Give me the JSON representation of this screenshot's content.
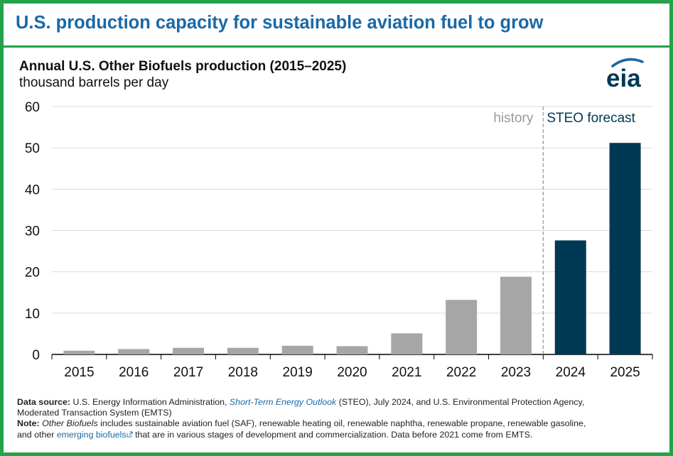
{
  "header": {
    "headline": "U.S. production capacity for sustainable aviation fuel to grow"
  },
  "chart_data": {
    "type": "bar",
    "title": "Annual U.S. Other Biofuels production (2015–2025)",
    "subtitle": "thousand barrels per day",
    "xlabel": "",
    "ylabel": "thousand barrels per day",
    "ylim": [
      0,
      60
    ],
    "yticks": [
      0,
      10,
      20,
      30,
      40,
      50,
      60
    ],
    "grid": true,
    "categories": [
      "2015",
      "2016",
      "2017",
      "2018",
      "2019",
      "2020",
      "2021",
      "2022",
      "2023",
      "2024",
      "2025"
    ],
    "values": [
      0.9,
      1.3,
      1.6,
      1.6,
      2.1,
      2.0,
      5.1,
      13.2,
      18.8,
      27.6,
      51.2
    ],
    "series_segments": [
      {
        "name": "history",
        "label": "history",
        "from": "2015",
        "to": "2023",
        "color": "#a6a6a6"
      },
      {
        "name": "forecast",
        "label": "STEO forecast",
        "from": "2024",
        "to": "2025",
        "color": "#003953"
      }
    ],
    "divider": "dashed line between 2023 and 2024"
  },
  "logo": {
    "text": "eia",
    "color": "#003953",
    "accent": "#1a69a6"
  },
  "footnote": {
    "source_label": "Data source:",
    "source_pre": " U.S. Energy Information Administration, ",
    "source_link": "Short-Term Energy Outlook",
    "source_post": " (STEO), July 2024, and U.S. Environmental Protection Agency,",
    "source_line2": "Moderated Transaction System (EMTS)",
    "note_label": "Note:",
    "note_italic": "Other Biofuels",
    "note_text1": " includes sustainable aviation fuel (SAF), renewable heating oil, renewable naphtha, renewable propane, renewable gasoline,",
    "note_pre2": "and other ",
    "note_link": "emerging biofuels",
    "note_post2": " that are in various stages of development and commercialization. Data before 2021 come from EMTS."
  },
  "colors": {
    "frame": "#25a24a",
    "headline": "#1a69a6",
    "history": "#a6a6a6",
    "forecast": "#003953",
    "grid": "#d9d9d9"
  }
}
